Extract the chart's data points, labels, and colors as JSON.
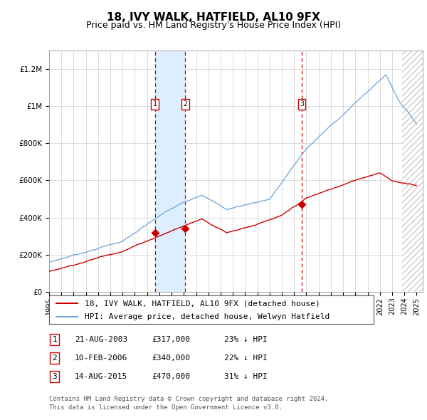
{
  "title": "18, IVY WALK, HATFIELD, AL10 9FX",
  "subtitle": "Price paid vs. HM Land Registry's House Price Index (HPI)",
  "ylim": [
    0,
    1300000
  ],
  "yticks": [
    0,
    200000,
    400000,
    600000,
    800000,
    1000000,
    1200000
  ],
  "ytick_labels": [
    "£0",
    "£200K",
    "£400K",
    "£600K",
    "£800K",
    "£1M",
    "£1.2M"
  ],
  "x_start_year": 1995,
  "x_end_year": 2025,
  "sale_dates_num": [
    2003.644,
    2006.11,
    2015.619
  ],
  "sale_prices": [
    317000,
    340000,
    470000
  ],
  "sale_labels": [
    "1",
    "2",
    "3"
  ],
  "sale_info": [
    {
      "label": "1",
      "date": "21-AUG-2003",
      "price": "£317,000",
      "diff": "23% ↓ HPI"
    },
    {
      "label": "2",
      "date": "10-FEB-2006",
      "price": "£340,000",
      "diff": "22% ↓ HPI"
    },
    {
      "label": "3",
      "date": "14-AUG-2015",
      "price": "£470,000",
      "diff": "31% ↓ HPI"
    }
  ],
  "legend_line1": "18, IVY WALK, HATFIELD, AL10 9FX (detached house)",
  "legend_line2": "HPI: Average price, detached house, Welwyn Hatfield",
  "footer1": "Contains HM Land Registry data © Crown copyright and database right 2024.",
  "footer2": "This data is licensed under the Open Government Licence v3.0.",
  "red_color": "#cc0000",
  "blue_color": "#7aaadd",
  "bg_color": "#ffffff",
  "grid_color": "#cccccc",
  "highlight_color": "#ddeeff",
  "hatch_color": "#cccccc",
  "title_fontsize": 11,
  "subtitle_fontsize": 9,
  "tick_fontsize": 7.5,
  "legend_fontsize": 8,
  "table_fontsize": 8,
  "footer_fontsize": 6.5
}
